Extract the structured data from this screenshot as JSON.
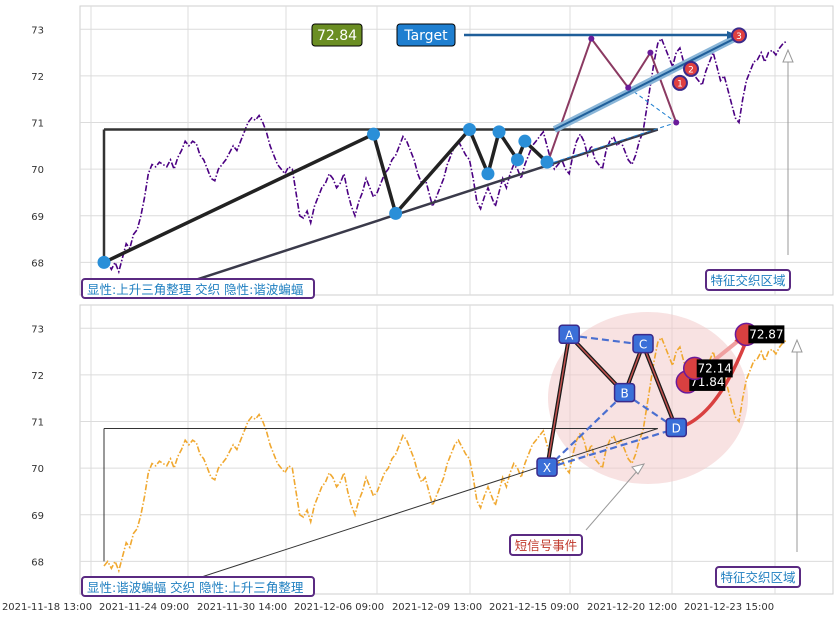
{
  "chart_data": [
    {
      "type": "line",
      "panel": "top",
      "x_ticks": [
        "2021-11-18 13:00",
        "2021-11-24 09:00",
        "2021-11-30 14:00",
        "2021-12-06 09:00",
        "2021-12-09 13:00",
        "2021-12-15 09:00",
        "2021-12-20 12:00",
        "2021-12-23 15:00"
      ],
      "ylim": [
        67.3,
        73.5
      ],
      "y_ticks": [
        68,
        69,
        70,
        71,
        72,
        73
      ],
      "grid": true,
      "series_style": {
        "color": "#4b0082",
        "dash": "dashdot"
      },
      "values": [
        67.9,
        68.0,
        67.85,
        68.0,
        67.8,
        68.1,
        68.4,
        68.3,
        68.6,
        68.7,
        69.0,
        69.4,
        69.9,
        70.1,
        70.05,
        70.15,
        70.1,
        70.05,
        70.2,
        70.0,
        70.25,
        70.4,
        70.6,
        70.5,
        70.6,
        70.55,
        70.3,
        70.2,
        70.0,
        69.8,
        69.75,
        70.0,
        70.1,
        70.2,
        70.35,
        70.5,
        70.4,
        70.6,
        70.8,
        71.0,
        71.1,
        71.05,
        71.15,
        71.0,
        70.8,
        70.5,
        70.3,
        70.1,
        70.0,
        69.9,
        70.05,
        70.0,
        69.5,
        69.0,
        68.95,
        69.1,
        68.85,
        69.2,
        69.4,
        69.6,
        69.7,
        69.9,
        69.8,
        69.6,
        69.7,
        69.9,
        69.5,
        69.2,
        69.0,
        69.3,
        69.5,
        69.8,
        69.6,
        69.4,
        69.5,
        69.7,
        69.9,
        70.0,
        70.2,
        70.3,
        70.5,
        70.7,
        70.6,
        70.4,
        70.2,
        69.9,
        69.7,
        69.8,
        69.5,
        69.2,
        69.4,
        69.6,
        69.8,
        70.1,
        70.3,
        70.5,
        70.6,
        70.45,
        70.3,
        70.2,
        69.8,
        69.3,
        69.15,
        69.4,
        69.6,
        69.4,
        69.2,
        69.5,
        69.8,
        69.6,
        69.9,
        70.1,
        70.0,
        69.8,
        70.1,
        70.3,
        70.5,
        70.6,
        70.7,
        70.8,
        70.5,
        70.2,
        70.0,
        70.1,
        70.2,
        70.0,
        69.9,
        70.3,
        70.6,
        70.75,
        70.6,
        70.3,
        70.5,
        70.2,
        70.1,
        70.0,
        70.4,
        70.6,
        70.7,
        70.5,
        70.6,
        70.4,
        70.2,
        70.1,
        70.3,
        70.6,
        70.8,
        71.3,
        71.8,
        72.3,
        72.7,
        72.8,
        72.6,
        72.4,
        72.2,
        72.5,
        72.6,
        72.3,
        72.1,
        72.2,
        72.0,
        71.9,
        71.8,
        72.1,
        72.3,
        72.5,
        72.2,
        71.9,
        72.0,
        71.7,
        71.4,
        71.1,
        71.0,
        71.5,
        71.9,
        72.1,
        72.3,
        72.35,
        72.5,
        72.3,
        72.5,
        72.55,
        72.45,
        72.6,
        72.7,
        72.75
      ],
      "pattern": {
        "name": "上升三角整理",
        "vertices": [
          {
            "x_index": 0,
            "y": 68.0
          },
          {
            "x_index": 73,
            "y": 70.75
          },
          {
            "x_index": 79,
            "y": 69.05
          },
          {
            "x_index": 99,
            "y": 70.85
          },
          {
            "x_index": 104,
            "y": 69.9
          },
          {
            "x_index": 107,
            "y": 70.8
          },
          {
            "x_index": 112,
            "y": 70.2
          },
          {
            "x_index": 114,
            "y": 70.6
          },
          {
            "x_index": 120,
            "y": 70.15
          }
        ],
        "resistance": {
          "from": {
            "x_index": 0,
            "y": 70.85
          },
          "to": {
            "x_index": 150,
            "y": 70.85
          }
        },
        "support": {
          "from": {
            "x_index": 20,
            "y": 67.5
          },
          "to": {
            "x_index": 150,
            "y": 70.85
          }
        }
      },
      "harmonic": {
        "points": [
          {
            "x_index": 120,
            "y": 70.1
          },
          {
            "x_index": 132,
            "y": 72.8
          },
          {
            "x_index": 142,
            "y": 71.75
          },
          {
            "x_index": 148,
            "y": 72.5
          },
          {
            "x_index": 155,
            "y": 71.0
          }
        ]
      },
      "target_line": {
        "from": {
          "x_index": 122,
          "y": 70.85
        },
        "to": {
          "x_index": 172,
          "y": 72.85
        }
      },
      "target_label": "Target",
      "target_value": "72.84",
      "steps": [
        {
          "label": "1",
          "x_index": 156,
          "y": 71.85
        },
        {
          "label": "2",
          "x_index": 159,
          "y": 72.15
        },
        {
          "label": "3",
          "x_index": 172,
          "y": 72.87
        }
      ],
      "legend_label": "显性:上升三角整理 交织 隐性:谐波蝙蝠",
      "zone_label": "特征交织区域"
    },
    {
      "type": "line",
      "panel": "bottom",
      "x_ticks": [
        "2021-11-18 13:00",
        "2021-11-24 09:00",
        "2021-11-30 14:00",
        "2021-12-06 09:00",
        "2021-12-09 13:00",
        "2021-12-15 09:00",
        "2021-12-20 12:00",
        "2021-12-23 15:00"
      ],
      "ylim": [
        67.3,
        73.5
      ],
      "y_ticks": [
        68,
        69,
        70,
        71,
        72,
        73
      ],
      "grid": true,
      "series_style": {
        "color": "#f0a830",
        "dash": "dashdot"
      },
      "harmonic": {
        "points": [
          {
            "label": "X",
            "x_index": 120,
            "y": 70.0
          },
          {
            "label": "A",
            "x_index": 126,
            "y": 72.85
          },
          {
            "label": "B",
            "x_index": 141,
            "y": 71.6
          },
          {
            "label": "C",
            "x_index": 146,
            "y": 72.65
          },
          {
            "label": "D",
            "x_index": 155,
            "y": 70.85
          }
        ]
      },
      "projections": [
        {
          "value": "71.84",
          "x_index": 158,
          "y": 71.85
        },
        {
          "value": "72.14",
          "x_index": 160,
          "y": 72.14
        },
        {
          "value": "72.87",
          "x_index": 174,
          "y": 72.87
        }
      ],
      "event_label": "短信号事件",
      "legend_label": "显性:谐波蝙蝠 交织 隐性:上升三角整理",
      "zone_label": "特征交织区域"
    }
  ]
}
